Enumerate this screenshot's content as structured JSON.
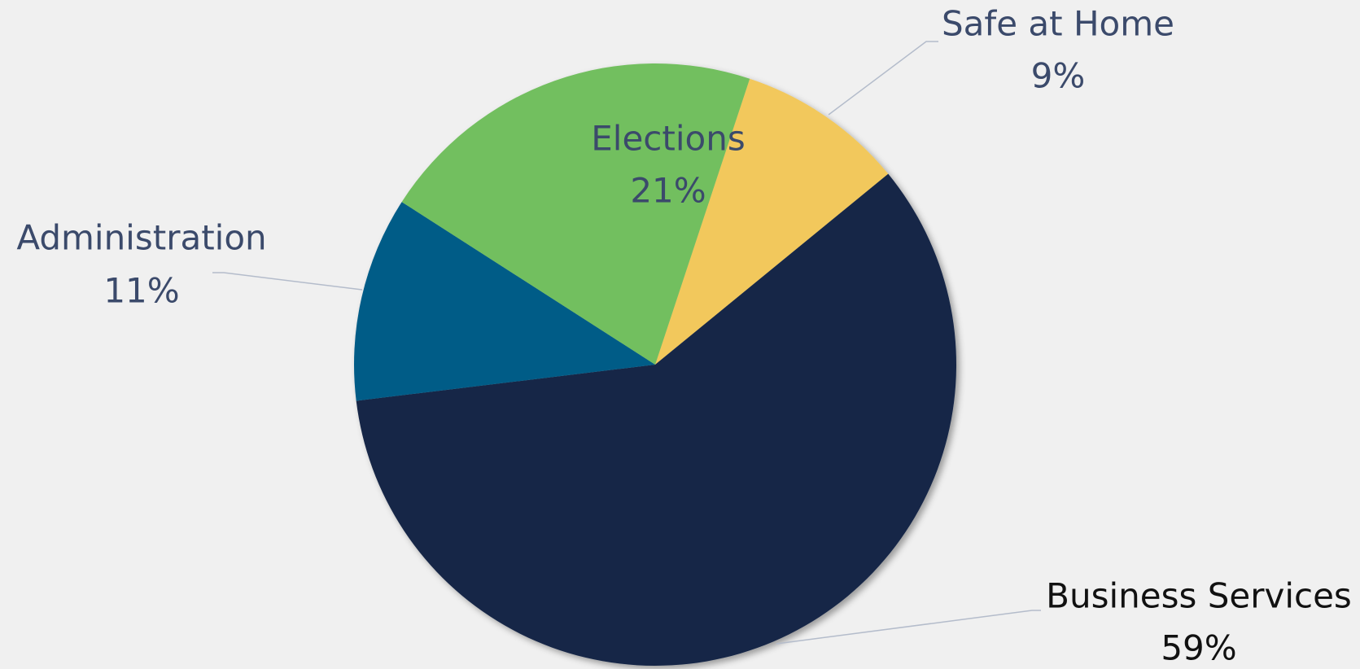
{
  "chart_data": {
    "type": "pie",
    "categories": [
      "Safe at Home",
      "Business Services",
      "Administration",
      "Elections"
    ],
    "values": [
      9,
      59,
      11,
      21
    ],
    "value_labels": [
      "9%",
      "59%",
      "11%",
      "21%"
    ],
    "colors": [
      "#f2c85b",
      "#152647",
      "#005b87",
      "#72bf5e"
    ]
  }
}
